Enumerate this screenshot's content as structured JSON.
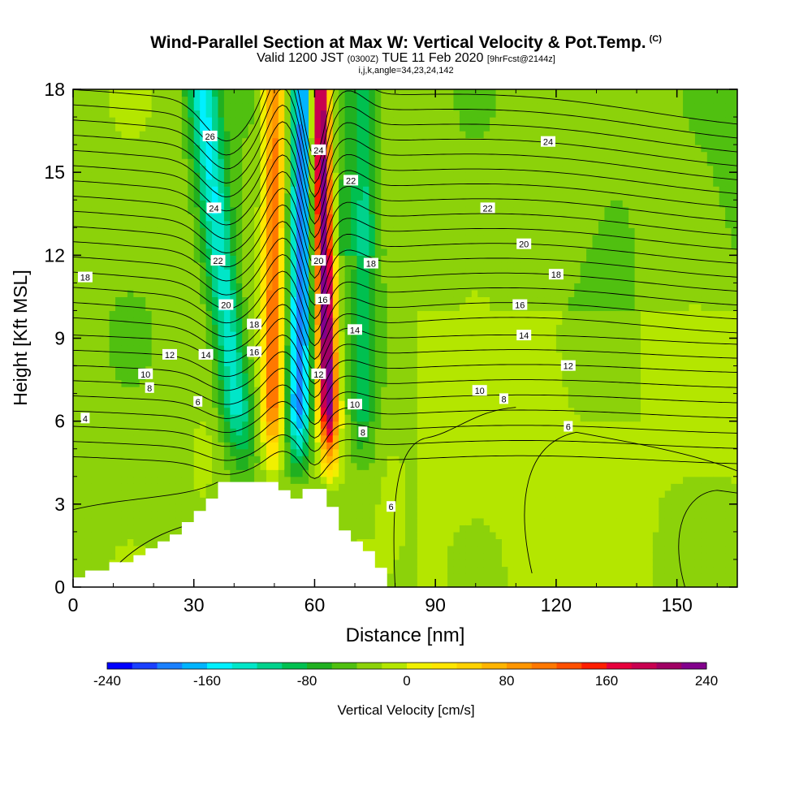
{
  "title": {
    "main": "Wind-Parallel Section at Max W: Vertical Velocity & Pot.Temp.",
    "copyright": "(C)",
    "valid_prefix": "Valid 1200 JST",
    "valid_zulu": "(0300Z)",
    "valid_date": "TUE 11 Feb 2020",
    "forecast": "[9hrFcst@2144z]",
    "params": "i,j,k,angle=34,23,24,142"
  },
  "chart_data": {
    "type": "heatmap",
    "xlabel": "Distance [nm]",
    "ylabel": "Height [Kft MSL]",
    "xlim": [
      0,
      165
    ],
    "ylim": [
      0,
      18
    ],
    "x_ticks": [
      0,
      30,
      60,
      90,
      120,
      150
    ],
    "y_ticks": [
      0,
      3,
      6,
      9,
      12,
      15,
      18
    ],
    "colorbar": {
      "label": "Vertical Velocity [cm/s]",
      "ticks": [
        -240,
        -160,
        -80,
        0,
        80,
        160,
        240
      ],
      "levels": [
        -240,
        -220,
        -200,
        -180,
        -160,
        -140,
        -120,
        -100,
        -80,
        -60,
        -40,
        -20,
        0,
        20,
        40,
        60,
        80,
        100,
        120,
        140,
        160,
        180,
        200,
        220,
        240
      ],
      "colors": [
        "#0000ff",
        "#1a40ff",
        "#1a80ff",
        "#00b4ff",
        "#00f0ff",
        "#00e6c8",
        "#00d28c",
        "#00c050",
        "#20b020",
        "#50c010",
        "#8cd20a",
        "#b4e600",
        "#f0f000",
        "#ffe600",
        "#ffd200",
        "#ffb400",
        "#ff9600",
        "#ff7800",
        "#ff5000",
        "#ff1e00",
        "#e6003c",
        "#c80050",
        "#a00064",
        "#82008c"
      ]
    },
    "contour_field": "Potential Temperature",
    "contour_labels": [
      {
        "x": 3,
        "y": 6.1,
        "text": "4"
      },
      {
        "x": 3,
        "y": 11.2,
        "text": "18"
      },
      {
        "x": 19,
        "y": 7.2,
        "text": "8"
      },
      {
        "x": 18,
        "y": 7.7,
        "text": "10"
      },
      {
        "x": 24,
        "y": 8.4,
        "text": "12"
      },
      {
        "x": 31,
        "y": 6.7,
        "text": "6"
      },
      {
        "x": 33,
        "y": 8.4,
        "text": "14"
      },
      {
        "x": 38,
        "y": 10.2,
        "text": "20"
      },
      {
        "x": 36,
        "y": 11.8,
        "text": "22"
      },
      {
        "x": 35,
        "y": 13.7,
        "text": "24"
      },
      {
        "x": 34,
        "y": 16.3,
        "text": "26"
      },
      {
        "x": 45,
        "y": 8.5,
        "text": "16"
      },
      {
        "x": 45,
        "y": 9.5,
        "text": "18"
      },
      {
        "x": 61,
        "y": 11.8,
        "text": "20"
      },
      {
        "x": 61,
        "y": 15.8,
        "text": "24"
      },
      {
        "x": 62,
        "y": 10.4,
        "text": "16"
      },
      {
        "x": 61,
        "y": 7.7,
        "text": "12"
      },
      {
        "x": 69,
        "y": 14.7,
        "text": "22"
      },
      {
        "x": 70,
        "y": 9.3,
        "text": "14"
      },
      {
        "x": 70,
        "y": 6.6,
        "text": "10"
      },
      {
        "x": 72,
        "y": 5.6,
        "text": "8"
      },
      {
        "x": 74,
        "y": 11.7,
        "text": "18"
      },
      {
        "x": 79,
        "y": 2.9,
        "text": "6"
      },
      {
        "x": 101,
        "y": 7.1,
        "text": "10"
      },
      {
        "x": 103,
        "y": 13.7,
        "text": "22"
      },
      {
        "x": 107,
        "y": 6.8,
        "text": "8"
      },
      {
        "x": 112,
        "y": 12.4,
        "text": "20"
      },
      {
        "x": 112,
        "y": 9.1,
        "text": "14"
      },
      {
        "x": 111,
        "y": 10.2,
        "text": "16"
      },
      {
        "x": 118,
        "y": 16.1,
        "text": "24"
      },
      {
        "x": 120,
        "y": 11.3,
        "text": "18"
      },
      {
        "x": 123,
        "y": 8.0,
        "text": "12"
      },
      {
        "x": 123,
        "y": 5.8,
        "text": "6"
      }
    ],
    "terrain_profile": [
      [
        0,
        0.35
      ],
      [
        3,
        0.35
      ],
      [
        3,
        0.6
      ],
      [
        9,
        0.6
      ],
      [
        9,
        0.9
      ],
      [
        15,
        0.9
      ],
      [
        15,
        1.15
      ],
      [
        18,
        1.15
      ],
      [
        18,
        1.4
      ],
      [
        21,
        1.4
      ],
      [
        21,
        1.65
      ],
      [
        24,
        1.65
      ],
      [
        24,
        1.9
      ],
      [
        27,
        1.9
      ],
      [
        27,
        2.35
      ],
      [
        30,
        2.35
      ],
      [
        30,
        2.75
      ],
      [
        33,
        2.75
      ],
      [
        33,
        3.2
      ],
      [
        36,
        3.2
      ],
      [
        36,
        3.8
      ],
      [
        51,
        3.8
      ],
      [
        51,
        3.5
      ],
      [
        54,
        3.5
      ],
      [
        54,
        3.2
      ],
      [
        57,
        3.2
      ],
      [
        57,
        3.55
      ],
      [
        63,
        3.55
      ],
      [
        63,
        2.9
      ],
      [
        66,
        2.9
      ],
      [
        66,
        2.05
      ],
      [
        69,
        2.05
      ],
      [
        69,
        1.65
      ],
      [
        72,
        1.65
      ],
      [
        72,
        1.3
      ],
      [
        75,
        1.3
      ],
      [
        75,
        0.7
      ],
      [
        78,
        0.7
      ],
      [
        78,
        0
      ]
    ]
  }
}
